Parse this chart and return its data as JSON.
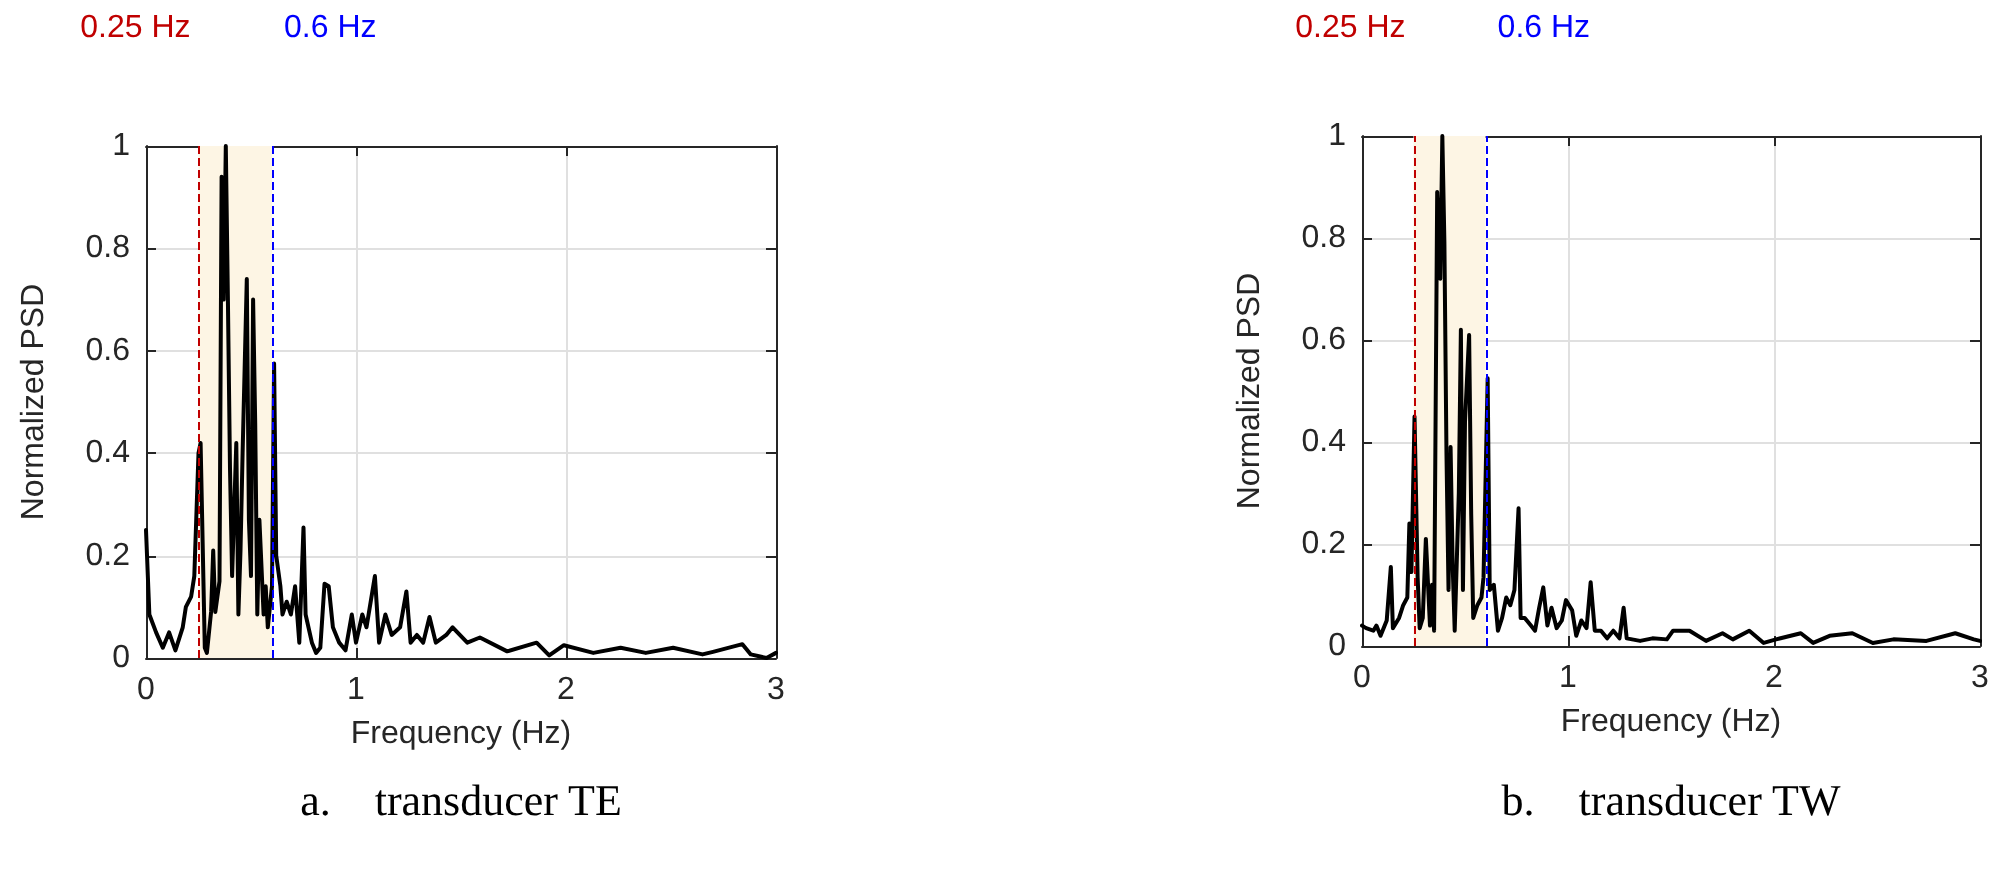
{
  "chart_data": [
    {
      "type": "line",
      "xlabel": "Frequency (Hz)",
      "ylabel": "Normalized PSD",
      "xlim": [
        0,
        3
      ],
      "ylim": [
        0,
        1
      ],
      "xticks": [
        0,
        1,
        2,
        3
      ],
      "yticks": [
        0,
        0.2,
        0.4,
        0.6,
        0.8,
        1
      ],
      "grid": true,
      "annotations": [
        "a.    transducer TE"
      ],
      "ref_lines": [
        {
          "axis": "x",
          "value": 0.25,
          "label": "0.25 Hz",
          "color": "#c00000",
          "line_style": "dashed"
        },
        {
          "axis": "x",
          "value": 0.6,
          "label": "0.6 Hz",
          "color": "#0000ff",
          "line_style": "dashed"
        }
      ],
      "bands": [
        {
          "axis": "x",
          "from": 0.25,
          "to": 0.6,
          "color": "#fdf5e4"
        }
      ],
      "series": [
        {
          "color": "#000000",
          "x": [
            0,
            0.016,
            0.048,
            0.08,
            0.11,
            0.14,
            0.175,
            0.19,
            0.215,
            0.23,
            0.25,
            0.26,
            0.28,
            0.29,
            0.31,
            0.32,
            0.33,
            0.35,
            0.36,
            0.37,
            0.38,
            0.39,
            0.4,
            0.41,
            0.43,
            0.44,
            0.45,
            0.46,
            0.48,
            0.49,
            0.5,
            0.51,
            0.52,
            0.53,
            0.54,
            0.56,
            0.57,
            0.58,
            0.6,
            0.61,
            0.62,
            0.64,
            0.65,
            0.67,
            0.69,
            0.71,
            0.73,
            0.75,
            0.76,
            0.79,
            0.81,
            0.83,
            0.85,
            0.87,
            0.89,
            0.92,
            0.95,
            0.98,
            1.0,
            1.03,
            1.05,
            1.09,
            1.11,
            1.14,
            1.17,
            1.21,
            1.24,
            1.26,
            1.29,
            1.32,
            1.35,
            1.38,
            1.43,
            1.46,
            1.53,
            1.59,
            1.72,
            1.86,
            1.92,
            1.99,
            2.13,
            2.26,
            2.38,
            2.51,
            2.65,
            2.7,
            2.84,
            2.88,
            2.955,
            3.0
          ],
          "values": [
            0.25,
            0.085,
            0.05,
            0.02,
            0.05,
            0.015,
            0.06,
            0.1,
            0.12,
            0.16,
            0.4,
            0.42,
            0.02,
            0.01,
            0.09,
            0.21,
            0.09,
            0.15,
            0.94,
            0.7,
            1.0,
            0.7,
            0.37,
            0.16,
            0.42,
            0.085,
            0.21,
            0.4,
            0.74,
            0.27,
            0.16,
            0.7,
            0.46,
            0.085,
            0.27,
            0.085,
            0.14,
            0.06,
            0.14,
            0.575,
            0.2,
            0.14,
            0.085,
            0.11,
            0.085,
            0.14,
            0.03,
            0.255,
            0.085,
            0.03,
            0.01,
            0.02,
            0.145,
            0.14,
            0.06,
            0.03,
            0.015,
            0.085,
            0.03,
            0.085,
            0.06,
            0.16,
            0.03,
            0.085,
            0.045,
            0.06,
            0.13,
            0.03,
            0.045,
            0.03,
            0.08,
            0.03,
            0.045,
            0.06,
            0.03,
            0.04,
            0.013,
            0.03,
            0.005,
            0.025,
            0.01,
            0.02,
            0.01,
            0.02,
            0.007,
            0.012,
            0.027,
            0.007,
            0,
            0.01
          ]
        }
      ]
    },
    {
      "type": "line",
      "xlabel": "Frequency (Hz)",
      "ylabel": "Normalized PSD",
      "xlim": [
        0,
        3
      ],
      "ylim": [
        0,
        1
      ],
      "xticks": [
        0,
        1,
        2,
        3
      ],
      "yticks": [
        0,
        0.2,
        0.4,
        0.6,
        0.8,
        1
      ],
      "grid": true,
      "annotations": [
        "b.    transducer TW"
      ],
      "ref_lines": [
        {
          "axis": "x",
          "value": 0.25,
          "label": "0.25 Hz",
          "color": "#c00000",
          "line_style": "dashed"
        },
        {
          "axis": "x",
          "value": 0.6,
          "label": "0.6 Hz",
          "color": "#0000ff",
          "line_style": "dashed"
        }
      ],
      "bands": [
        {
          "axis": "x",
          "from": 0.25,
          "to": 0.6,
          "color": "#fdf5e4"
        }
      ],
      "series": [
        {
          "color": "#000000",
          "x": [
            0,
            0.02,
            0.055,
            0.07,
            0.09,
            0.12,
            0.14,
            0.15,
            0.18,
            0.2,
            0.22,
            0.23,
            0.24,
            0.255,
            0.27,
            0.28,
            0.295,
            0.31,
            0.33,
            0.34,
            0.35,
            0.365,
            0.38,
            0.39,
            0.4,
            0.41,
            0.42,
            0.43,
            0.44,
            0.45,
            0.47,
            0.48,
            0.49,
            0.5,
            0.52,
            0.53,
            0.54,
            0.56,
            0.58,
            0.59,
            0.61,
            0.62,
            0.64,
            0.66,
            0.68,
            0.7,
            0.72,
            0.74,
            0.76,
            0.77,
            0.79,
            0.82,
            0.84,
            0.86,
            0.88,
            0.9,
            0.92,
            0.945,
            0.97,
            0.99,
            1.02,
            1.04,
            1.065,
            1.09,
            1.11,
            1.13,
            1.16,
            1.19,
            1.22,
            1.25,
            1.27,
            1.285,
            1.35,
            1.41,
            1.48,
            1.51,
            1.59,
            1.67,
            1.75,
            1.8,
            1.88,
            1.95,
            2.01,
            2.13,
            2.19,
            2.27,
            2.38,
            2.48,
            2.58,
            2.74,
            2.88,
            2.97,
            3.0
          ],
          "values": [
            0.04,
            0.035,
            0.03,
            0.04,
            0.02,
            0.05,
            0.155,
            0.035,
            0.055,
            0.08,
            0.095,
            0.24,
            0.145,
            0.45,
            0.135,
            0.035,
            0.055,
            0.21,
            0.04,
            0.12,
            0.03,
            0.89,
            0.72,
            1.0,
            0.79,
            0.38,
            0.11,
            0.39,
            0.16,
            0.03,
            0.3,
            0.62,
            0.11,
            0.44,
            0.61,
            0.26,
            0.055,
            0.08,
            0.095,
            0.135,
            0.525,
            0.11,
            0.12,
            0.03,
            0.055,
            0.095,
            0.08,
            0.11,
            0.27,
            0.055,
            0.055,
            0.04,
            0.03,
            0.075,
            0.115,
            0.04,
            0.075,
            0.035,
            0.05,
            0.09,
            0.07,
            0.02,
            0.05,
            0.035,
            0.125,
            0.03,
            0.03,
            0.015,
            0.03,
            0.015,
            0.075,
            0.015,
            0.01,
            0.015,
            0.013,
            0.03,
            0.03,
            0.01,
            0.025,
            0.013,
            0.03,
            0.006,
            0.013,
            0.025,
            0.006,
            0.02,
            0.025,
            0.006,
            0.013,
            0.01,
            0.025,
            0.013,
            0.01
          ]
        }
      ]
    }
  ]
}
